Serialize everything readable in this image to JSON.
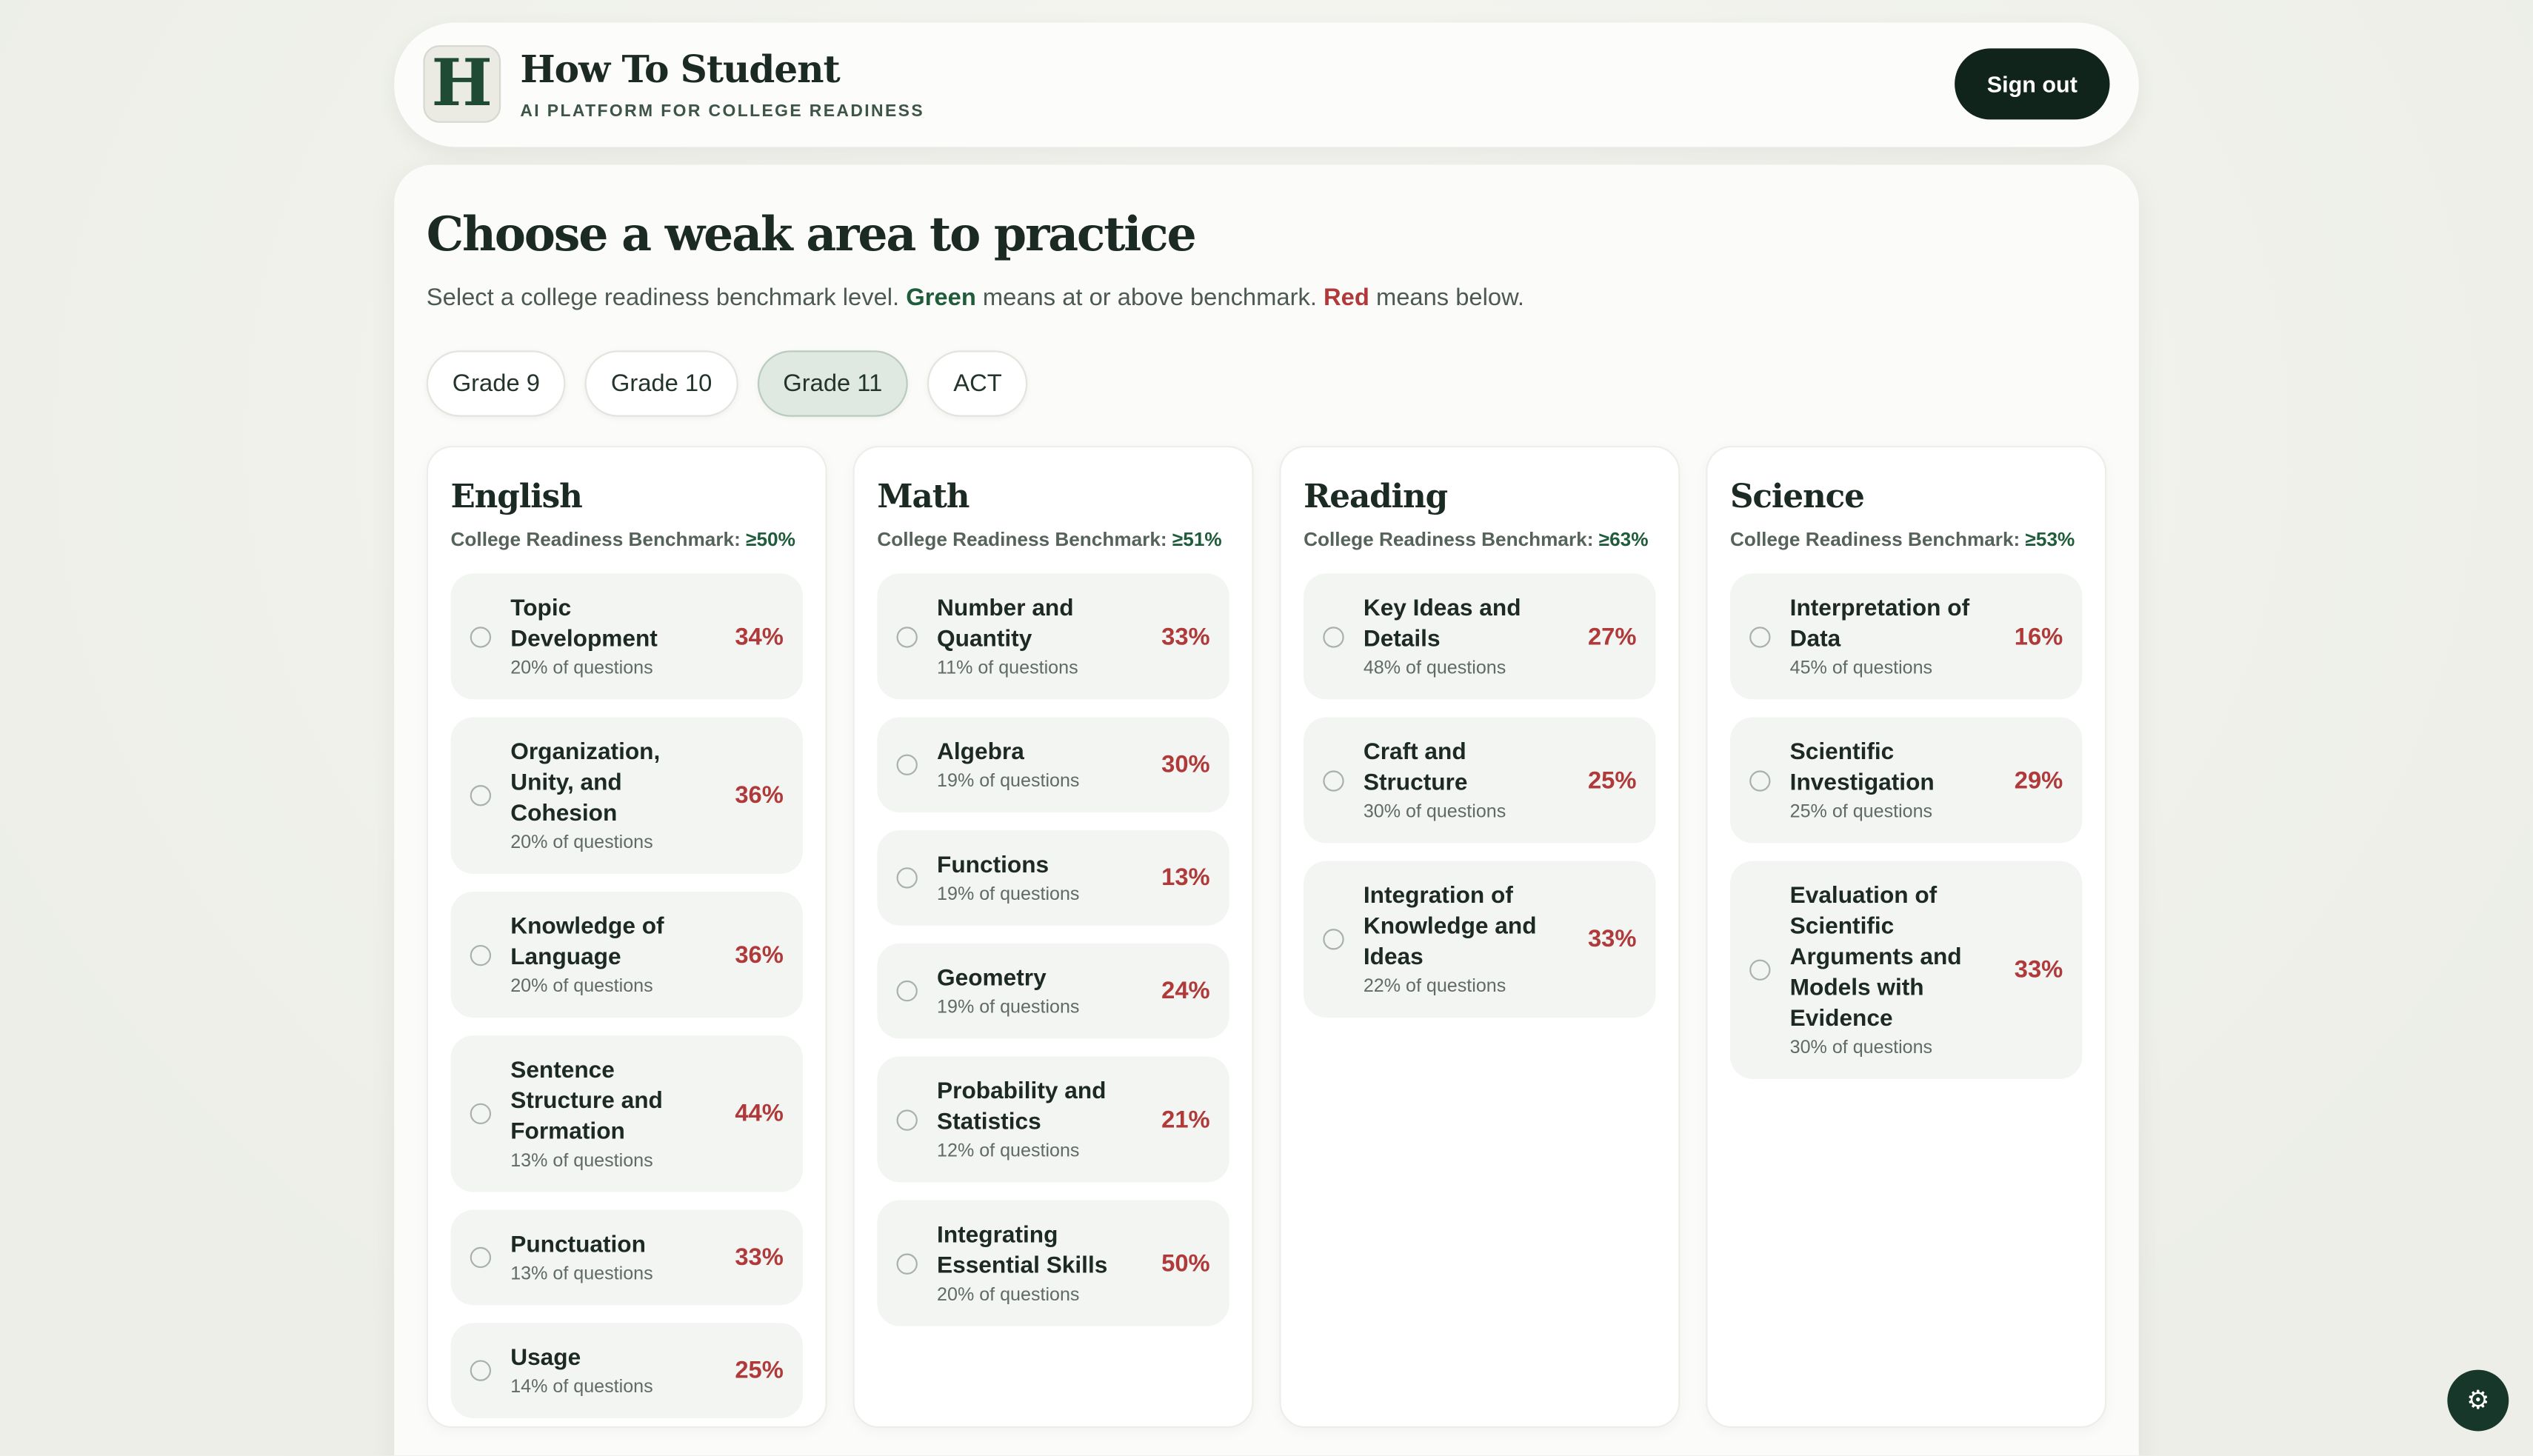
{
  "header": {
    "logo": "H",
    "title": "How To Student",
    "subtitle": "AI PLATFORM FOR COLLEGE READINESS",
    "button": "Sign out"
  },
  "page": {
    "heading": "Choose a weak area to practice",
    "description": [
      "Select a college readiness benchmark level. ",
      "Green",
      " means at or above benchmark. ",
      "Red",
      " means below."
    ],
    "tabs": [
      "Grade 9",
      "Grade 10",
      "Grade 11",
      "ACT"
    ],
    "selected_tab": "Grade 11"
  },
  "columns": [
    {
      "name": "English",
      "benchmark_label": "College Readiness Benchmark:",
      "benchmark": "≥50%",
      "topics": [
        {
          "name": "Topic Development",
          "share": "20% of questions",
          "score": "34%"
        },
        {
          "name": "Organization, Unity, and Cohesion",
          "share": "20% of questions",
          "score": "36%"
        },
        {
          "name": "Knowledge of Language",
          "share": "20% of questions",
          "score": "36%"
        },
        {
          "name": "Sentence Structure and Formation",
          "share": "13% of questions",
          "score": "44%"
        },
        {
          "name": "Punctuation",
          "share": "13% of questions",
          "score": "33%"
        },
        {
          "name": "Usage",
          "share": "14% of questions",
          "score": "25%"
        }
      ]
    },
    {
      "name": "Math",
      "benchmark_label": "College Readiness Benchmark:",
      "benchmark": "≥51%",
      "topics": [
        {
          "name": "Number and Quantity",
          "share": "11% of questions",
          "score": "33%"
        },
        {
          "name": "Algebra",
          "share": "19% of questions",
          "score": "30%"
        },
        {
          "name": "Functions",
          "share": "19% of questions",
          "score": "13%"
        },
        {
          "name": "Geometry",
          "share": "19% of questions",
          "score": "24%"
        },
        {
          "name": "Probability and Statistics",
          "share": "12% of questions",
          "score": "21%"
        },
        {
          "name": "Integrating Essential Skills",
          "share": "20% of questions",
          "score": "50%"
        }
      ]
    },
    {
      "name": "Reading",
      "benchmark_label": "College Readiness Benchmark:",
      "benchmark": "≥63%",
      "topics": [
        {
          "name": "Key Ideas and Details",
          "share": "48% of questions",
          "score": "27%"
        },
        {
          "name": "Craft and Structure",
          "share": "30% of questions",
          "score": "25%"
        },
        {
          "name": "Integration of Knowledge and Ideas",
          "share": "22% of questions",
          "score": "33%"
        }
      ]
    },
    {
      "name": "Science",
      "benchmark_label": "College Readiness Benchmark:",
      "benchmark": "≥53%",
      "topics": [
        {
          "name": "Interpretation of Data",
          "share": "45% of questions",
          "score": "16%"
        },
        {
          "name": "Scientific Investigation",
          "share": "25% of questions",
          "score": "29%"
        },
        {
          "name": "Evaluation of Scientific Arguments and Models with Evidence",
          "share": "30% of questions",
          "score": "33%"
        }
      ]
    }
  ]
}
